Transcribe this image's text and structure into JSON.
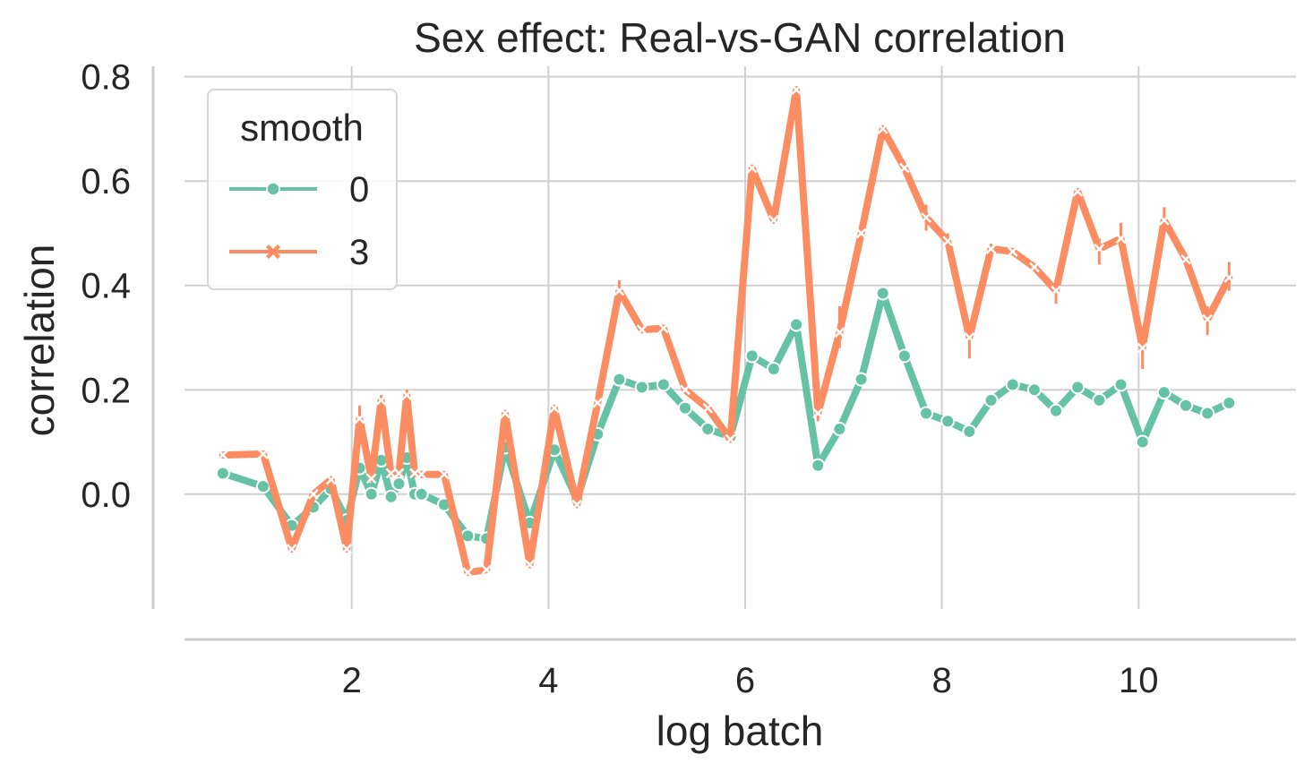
{
  "chart_data": {
    "type": "line",
    "title": "Sex effect: Real-vs-GAN correlation",
    "xlabel": "log batch",
    "ylabel": "correlation",
    "xlim": [
      0.3,
      11.6
    ],
    "ylim": [
      -0.22,
      0.82
    ],
    "xticks": [
      2,
      4,
      6,
      8,
      10
    ],
    "xtick_labels": [
      "2",
      "4",
      "6",
      "8",
      "10"
    ],
    "yticks": [
      0.0,
      0.2,
      0.4,
      0.6,
      0.8
    ],
    "ytick_labels": [
      "0.0",
      "0.2",
      "0.4",
      "0.6",
      "0.8"
    ],
    "grid": true,
    "legend": {
      "title": "smooth",
      "placement": "top-left",
      "entries": [
        "0",
        "3"
      ]
    },
    "series": [
      {
        "name": "0",
        "color": "#66c2a5",
        "marker": "circle",
        "points": [
          [
            0.69,
            0.04
          ],
          [
            1.1,
            0.015
          ],
          [
            1.39,
            -0.06
          ],
          [
            1.61,
            -0.025
          ],
          [
            1.79,
            0.01
          ],
          [
            1.95,
            -0.05
          ],
          [
            2.08,
            0.05
          ],
          [
            2.2,
            0.0
          ],
          [
            2.3,
            0.065
          ],
          [
            2.4,
            -0.005
          ],
          [
            2.48,
            0.02
          ],
          [
            2.56,
            0.07
          ],
          [
            2.64,
            0.0
          ],
          [
            2.71,
            0.0
          ],
          [
            2.94,
            -0.02
          ],
          [
            3.18,
            -0.08
          ],
          [
            3.37,
            -0.085
          ],
          [
            3.56,
            0.09
          ],
          [
            3.81,
            -0.055
          ],
          [
            4.06,
            0.085
          ],
          [
            4.29,
            -0.01
          ],
          [
            4.5,
            0.115
          ],
          [
            4.72,
            0.22
          ],
          [
            4.95,
            0.205
          ],
          [
            5.17,
            0.21
          ],
          [
            5.39,
            0.165
          ],
          [
            5.62,
            0.125
          ],
          [
            5.85,
            0.11
          ],
          [
            6.07,
            0.265
          ],
          [
            6.29,
            0.24
          ],
          [
            6.52,
            0.325
          ],
          [
            6.74,
            0.055
          ],
          [
            6.96,
            0.125
          ],
          [
            7.18,
            0.22
          ],
          [
            7.4,
            0.385
          ],
          [
            7.62,
            0.265
          ],
          [
            7.84,
            0.155
          ],
          [
            8.06,
            0.14
          ],
          [
            8.28,
            0.12
          ],
          [
            8.5,
            0.18
          ],
          [
            8.72,
            0.21
          ],
          [
            8.94,
            0.2
          ],
          [
            9.16,
            0.16
          ],
          [
            9.38,
            0.205
          ],
          [
            9.6,
            0.18
          ],
          [
            9.82,
            0.21
          ],
          [
            10.04,
            0.1
          ],
          [
            10.26,
            0.195
          ],
          [
            10.48,
            0.17
          ],
          [
            10.7,
            0.155
          ],
          [
            10.92,
            0.175
          ]
        ]
      },
      {
        "name": "3",
        "color": "#fc8d62",
        "marker": "x",
        "points": [
          [
            0.69,
            0.075
          ],
          [
            1.1,
            0.077
          ],
          [
            1.39,
            -0.105
          ],
          [
            1.61,
            0.0
          ],
          [
            1.79,
            0.028
          ],
          [
            1.95,
            -0.105
          ],
          [
            2.08,
            0.145
          ],
          [
            2.2,
            0.03
          ],
          [
            2.3,
            0.18
          ],
          [
            2.4,
            0.04
          ],
          [
            2.48,
            0.04
          ],
          [
            2.56,
            0.19
          ],
          [
            2.64,
            0.04
          ],
          [
            2.71,
            0.038
          ],
          [
            2.94,
            0.038
          ],
          [
            3.18,
            -0.15
          ],
          [
            3.37,
            -0.145
          ],
          [
            3.56,
            0.155
          ],
          [
            3.81,
            -0.135
          ],
          [
            4.06,
            0.165
          ],
          [
            4.29,
            -0.02
          ],
          [
            4.5,
            0.175
          ],
          [
            4.72,
            0.39
          ],
          [
            4.95,
            0.315
          ],
          [
            5.17,
            0.318
          ],
          [
            5.39,
            0.2
          ],
          [
            5.62,
            0.165
          ],
          [
            5.85,
            0.105
          ],
          [
            6.07,
            0.625
          ],
          [
            6.29,
            0.525
          ],
          [
            6.52,
            0.775
          ],
          [
            6.74,
            0.155
          ],
          [
            6.96,
            0.31
          ],
          [
            7.18,
            0.5
          ],
          [
            7.4,
            0.7
          ],
          [
            7.62,
            0.625
          ],
          [
            7.84,
            0.53
          ],
          [
            8.06,
            0.485
          ],
          [
            8.28,
            0.3
          ],
          [
            8.5,
            0.47
          ],
          [
            8.72,
            0.465
          ],
          [
            8.94,
            0.435
          ],
          [
            9.16,
            0.39
          ],
          [
            9.38,
            0.58
          ],
          [
            9.6,
            0.47
          ],
          [
            9.82,
            0.49
          ],
          [
            10.04,
            0.28
          ],
          [
            10.26,
            0.525
          ],
          [
            10.48,
            0.45
          ],
          [
            10.7,
            0.335
          ],
          [
            10.92,
            0.415
          ]
        ],
        "error_points": [
          [
            2.08,
            0.145,
            0.17
          ],
          [
            2.3,
            0.17,
            0.19
          ],
          [
            2.56,
            0.18,
            0.2
          ],
          [
            4.72,
            0.37,
            0.41
          ],
          [
            6.74,
            0.14,
            0.17
          ],
          [
            6.96,
            0.28,
            0.36
          ],
          [
            7.84,
            0.505,
            0.555
          ],
          [
            8.06,
            0.47,
            0.5
          ],
          [
            8.28,
            0.26,
            0.32
          ],
          [
            8.5,
            0.46,
            0.48
          ],
          [
            9.16,
            0.365,
            0.41
          ],
          [
            9.6,
            0.44,
            0.49
          ],
          [
            9.82,
            0.47,
            0.52
          ],
          [
            10.04,
            0.24,
            0.31
          ],
          [
            10.26,
            0.505,
            0.55
          ],
          [
            10.7,
            0.305,
            0.36
          ],
          [
            10.92,
            0.39,
            0.445
          ]
        ]
      }
    ]
  }
}
